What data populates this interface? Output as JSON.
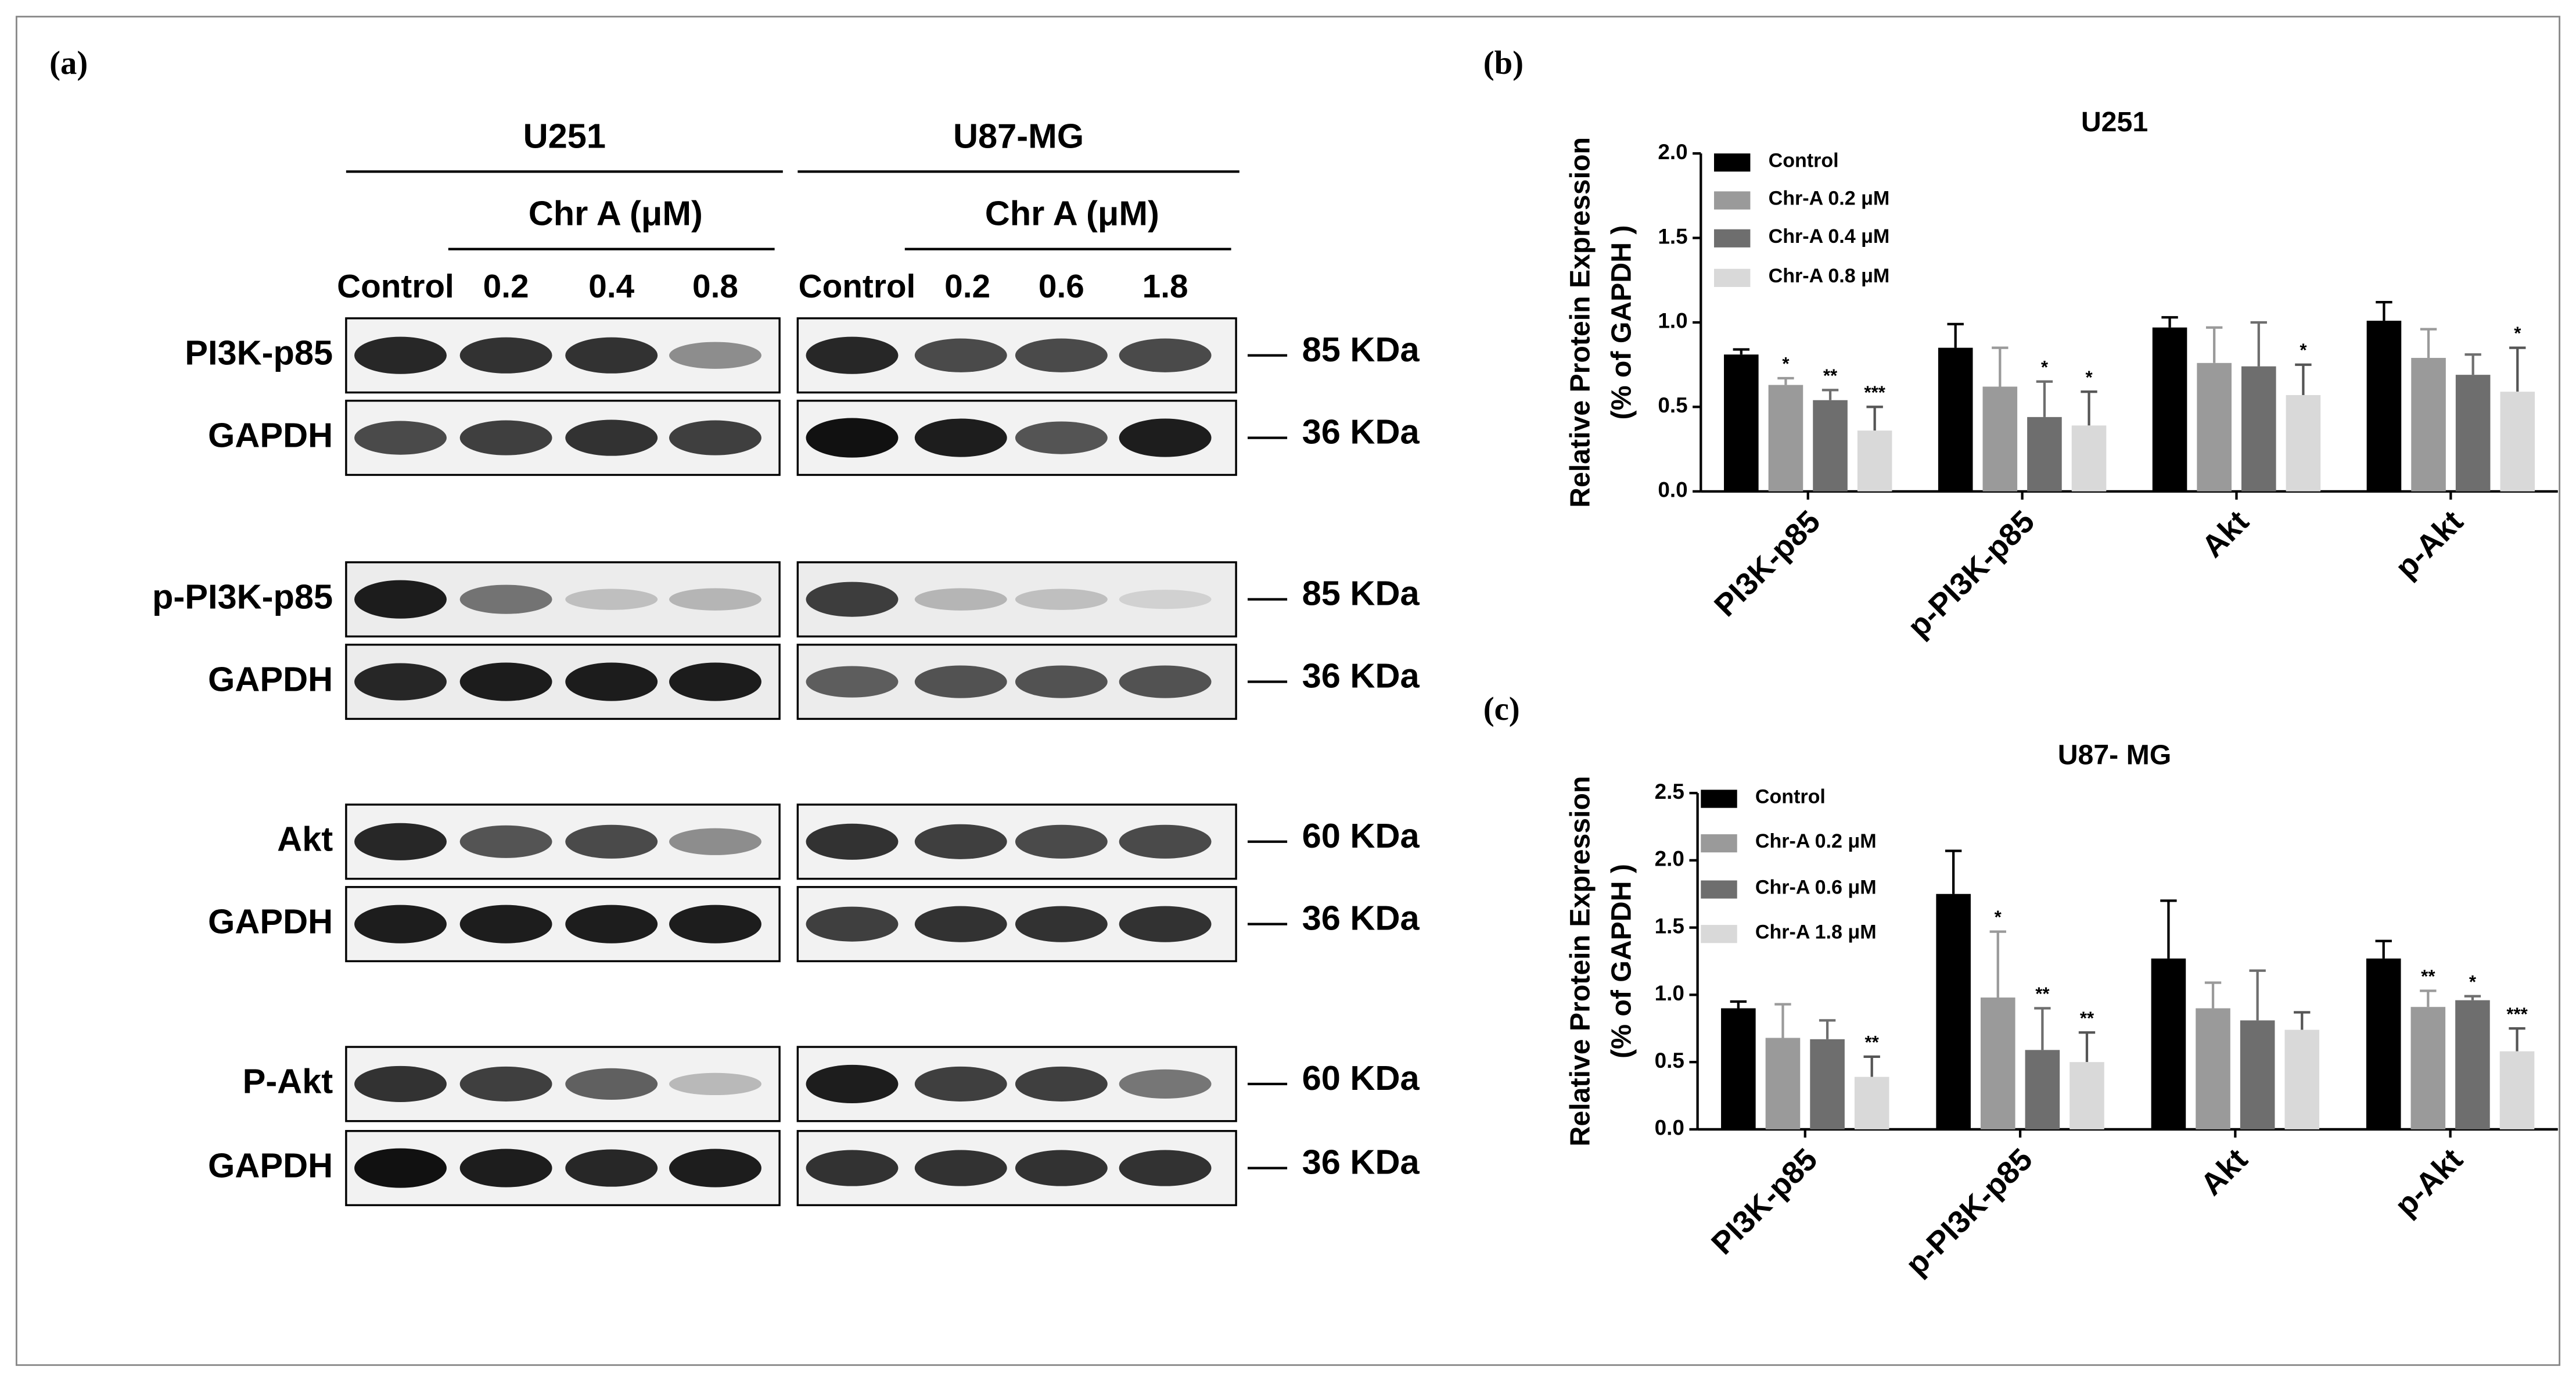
{
  "blot": {
    "label": "(a)",
    "cell_lines": [
      "U251",
      "U87-MG"
    ],
    "treatment": [
      "Chr A (μM)",
      "Chr A (μM)"
    ],
    "lanes": [
      [
        "Control",
        "0.2",
        "0.4",
        "0.8"
      ],
      [
        "Control",
        "0.2",
        "0.6",
        "1.8"
      ]
    ],
    "rows": [
      {
        "protein": "PI3K-p85",
        "size": "85 KDa"
      },
      {
        "protein": "GAPDH",
        "size": "36 KDa"
      },
      {
        "protein": "p-PI3K-p85",
        "size": "85 KDa"
      },
      {
        "protein": "GAPDH",
        "size": "36 KDa"
      },
      {
        "protein": "Akt",
        "size": "60 KDa"
      },
      {
        "protein": "GAPDH",
        "size": "36 KDa"
      },
      {
        "protein": "P-Akt",
        "size": "60 KDa"
      },
      {
        "protein": "GAPDH",
        "size": "36 KDa"
      }
    ]
  },
  "chart_data": [
    {
      "type": "bar",
      "label": "(b)",
      "title": "U251",
      "ylabel": [
        "Relative Protein Expression",
        "(% of GAPDH )"
      ],
      "categories": [
        "PI3K-p85",
        "p-PI3K-p85",
        "Akt",
        "p-Akt"
      ],
      "series": [
        {
          "name": "Control",
          "color": "#000000",
          "values": [
            0.81,
            0.85,
            0.97,
            1.01
          ],
          "errors": [
            0.03,
            0.14,
            0.06,
            0.11
          ],
          "significance": [
            null,
            null,
            null,
            null
          ]
        },
        {
          "name": "Chr-A 0.2 μM",
          "color": "#9a9a9a",
          "values": [
            0.63,
            0.62,
            0.76,
            0.79
          ],
          "errors": [
            0.04,
            0.23,
            0.21,
            0.17
          ],
          "significance": [
            "*",
            null,
            null,
            null
          ]
        },
        {
          "name": "Chr-A 0.4 μM",
          "color": "#6e6e6e",
          "values": [
            0.54,
            0.44,
            0.74,
            0.69
          ],
          "errors": [
            0.06,
            0.21,
            0.26,
            0.12
          ],
          "significance": [
            "**",
            "*",
            null,
            null
          ]
        },
        {
          "name": "Chr-A 0.8 μM",
          "color": "#d9d9d9",
          "values": [
            0.36,
            0.39,
            0.57,
            0.59
          ],
          "errors": [
            0.14,
            0.2,
            0.18,
            0.26
          ],
          "significance": [
            "***",
            "*",
            "*",
            "*"
          ]
        }
      ],
      "ylim": [
        0,
        2
      ],
      "yticks": [
        {
          "value": 0,
          "label": "0.0"
        },
        {
          "value": 0.5,
          "label": "0.5"
        },
        {
          "value": 1,
          "label": "1.0"
        },
        {
          "value": 1.5,
          "label": "1.5"
        },
        {
          "value": 2,
          "label": "2.0"
        }
      ]
    },
    {
      "type": "bar",
      "label": "(c)",
      "title": "U87- MG",
      "ylabel": [
        "Relative Protein Expression",
        "(% of GAPDH )"
      ],
      "categories": [
        "PI3K-p85",
        "p-PI3K-p85",
        "Akt",
        "p-Akt"
      ],
      "series": [
        {
          "name": "Control",
          "color": "#000000",
          "values": [
            0.9,
            1.75,
            1.27,
            1.27
          ],
          "errors": [
            0.05,
            0.32,
            0.43,
            0.13
          ],
          "significance": [
            null,
            null,
            null,
            null
          ]
        },
        {
          "name": "Chr-A 0.2 μM",
          "color": "#9a9a9a",
          "values": [
            0.68,
            0.98,
            0.9,
            0.91
          ],
          "errors": [
            0.25,
            0.49,
            0.19,
            0.12
          ],
          "significance": [
            null,
            "*",
            null,
            "**"
          ]
        },
        {
          "name": "Chr-A 0.6 μM",
          "color": "#6e6e6e",
          "values": [
            0.67,
            0.59,
            0.81,
            0.96
          ],
          "errors": [
            0.14,
            0.31,
            0.37,
            0.03
          ],
          "significance": [
            null,
            "**",
            null,
            "*"
          ]
        },
        {
          "name": "Chr-A 1.8 μM",
          "color": "#d9d9d9",
          "values": [
            0.39,
            0.5,
            0.74,
            0.58
          ],
          "errors": [
            0.15,
            0.22,
            0.13,
            0.17
          ],
          "significance": [
            "**",
            "**",
            null,
            "***"
          ]
        }
      ],
      "ylim": [
        0,
        2.5
      ],
      "yticks": [
        {
          "value": 0,
          "label": "0.0"
        },
        {
          "value": 0.5,
          "label": "0.5"
        },
        {
          "value": 1,
          "label": "1.0"
        },
        {
          "value": 1.5,
          "label": "1.5"
        },
        {
          "value": 2,
          "label": "2.0"
        },
        {
          "value": 2.5,
          "label": "2.5"
        }
      ]
    }
  ]
}
